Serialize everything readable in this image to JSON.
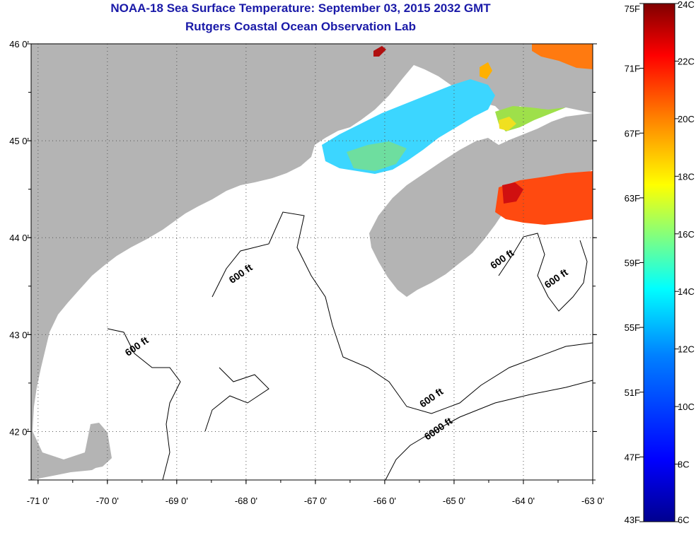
{
  "title_line1": "NOAA-18 Sea Surface Temperature:  September 03, 2015 2032 GMT",
  "title_line2": "Rutgers Coastal Ocean Observation Lab",
  "map": {
    "lon_ticks": [
      "-71 0'",
      "-70 0'",
      "-69 0'",
      "-68 0'",
      "-67 0'",
      "-66 0'",
      "-65 0'",
      "-64 0'",
      "-63 0'"
    ],
    "lat_ticks": [
      "46 0'",
      "45 0'",
      "44 0'",
      "43 0'",
      "42 0'"
    ],
    "lon_range": [
      -71.1,
      -63.0
    ],
    "lat_range": [
      41.5,
      46.0
    ],
    "land_color": "#b4b4b4",
    "water_color": "#ffffff",
    "grid": "dotted",
    "contour_labels": [
      {
        "text": "600 ft",
        "lon": -68.05,
        "lat": 43.6
      },
      {
        "text": "600 ft",
        "lon": -69.55,
        "lat": 42.85
      },
      {
        "text": "600 ft",
        "lon": -64.28,
        "lat": 43.75
      },
      {
        "text": "600 ft",
        "lon": -63.5,
        "lat": 43.55
      },
      {
        "text": "600 ft",
        "lon": -65.3,
        "lat": 42.32
      },
      {
        "text": "6000 ft",
        "lon": -65.2,
        "lat": 42.0
      }
    ]
  },
  "colorbar": {
    "fahrenheit_labels": [
      "75F",
      "71F",
      "67F",
      "63F",
      "59F",
      "55F",
      "51F",
      "47F",
      "43F"
    ],
    "celsius_labels": [
      "24C",
      "22C",
      "20C",
      "18C",
      "16C",
      "14C",
      "12C",
      "10C",
      "8C",
      "6C"
    ],
    "range_c": [
      6,
      24
    ],
    "colors": [
      "#00008f",
      "#0000ff",
      "#0080ff",
      "#00ffff",
      "#80ff80",
      "#ffff00",
      "#ff8000",
      "#ff0000",
      "#800000"
    ]
  }
}
